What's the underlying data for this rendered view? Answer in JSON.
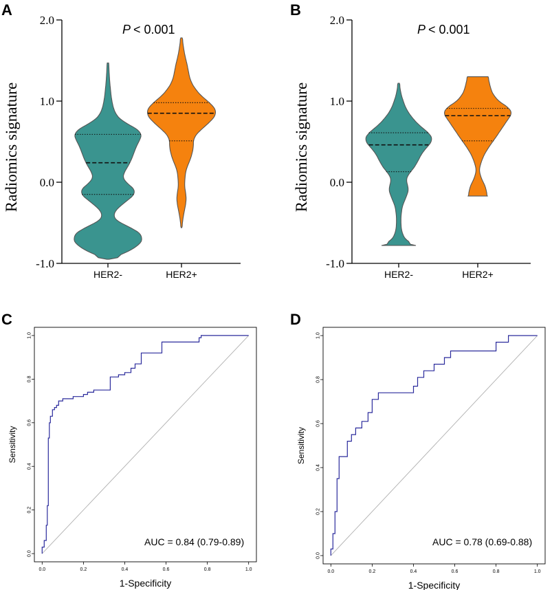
{
  "panels": {
    "A": {
      "letter": "A",
      "pvalue_symbol": "P",
      "pvalue_text": "< 0.001"
    },
    "B": {
      "letter": "B",
      "pvalue_symbol": "P",
      "pvalue_text": "< 0.001"
    },
    "C": {
      "letter": "C",
      "auc_text": "AUC = 0.84 (0.79-0.89)"
    },
    "D": {
      "letter": "D",
      "auc_text": "AUC = 0.78 (0.69-0.88)"
    }
  },
  "colors": {
    "her2_neg": "#3a948f",
    "her2_pos": "#f5820e",
    "roc_line": "#2a2a9c",
    "diag_line": "#b0b0b0"
  },
  "chart_data": [
    {
      "id": "A",
      "type": "violin",
      "title": "",
      "ylabel": "Radiomics signature",
      "xlabel": "",
      "categories": [
        "HER2-",
        "HER2+"
      ],
      "ylim": [
        -1.0,
        2.0
      ],
      "yticks": [
        -1.0,
        0.0,
        1.0,
        2.0
      ],
      "ytick_labels": [
        "-1.0",
        "0.0",
        "1.0",
        "2.0"
      ],
      "series": [
        {
          "name": "HER2-",
          "min": -0.95,
          "max": 1.47,
          "quartiles": [
            -0.15,
            0.24,
            0.59
          ],
          "profile": [
            [
              -0.95,
              0.03
            ],
            [
              -0.88,
              0.45
            ],
            [
              -0.78,
              0.88
            ],
            [
              -0.68,
              1.0
            ],
            [
              -0.58,
              0.78
            ],
            [
              -0.5,
              0.3
            ],
            [
              -0.44,
              0.15
            ],
            [
              -0.38,
              0.15
            ],
            [
              -0.3,
              0.32
            ],
            [
              -0.2,
              0.62
            ],
            [
              -0.12,
              0.82
            ],
            [
              -0.05,
              0.66
            ],
            [
              0.02,
              0.43
            ],
            [
              0.08,
              0.4
            ],
            [
              0.15,
              0.5
            ],
            [
              0.25,
              0.63
            ],
            [
              0.35,
              0.72
            ],
            [
              0.45,
              0.8
            ],
            [
              0.55,
              0.93
            ],
            [
              0.62,
              0.96
            ],
            [
              0.68,
              0.72
            ],
            [
              0.75,
              0.4
            ],
            [
              0.82,
              0.24
            ],
            [
              0.9,
              0.16
            ],
            [
              1.0,
              0.11
            ],
            [
              1.1,
              0.08
            ],
            [
              1.2,
              0.06
            ],
            [
              1.3,
              0.04
            ],
            [
              1.4,
              0.03
            ],
            [
              1.47,
              0.02
            ]
          ]
        },
        {
          "name": "HER2+",
          "min": -0.56,
          "max": 1.78,
          "quartiles": [
            0.51,
            0.85,
            0.98
          ],
          "profile": [
            [
              -0.56,
              0.01
            ],
            [
              -0.45,
              0.04
            ],
            [
              -0.35,
              0.08
            ],
            [
              -0.25,
              0.13
            ],
            [
              -0.15,
              0.13
            ],
            [
              -0.05,
              0.08
            ],
            [
              0.05,
              0.1
            ],
            [
              0.15,
              0.12
            ],
            [
              0.25,
              0.22
            ],
            [
              0.35,
              0.3
            ],
            [
              0.45,
              0.34
            ],
            [
              0.55,
              0.33
            ],
            [
              0.65,
              0.55
            ],
            [
              0.75,
              0.82
            ],
            [
              0.85,
              1.0
            ],
            [
              0.95,
              0.88
            ],
            [
              1.05,
              0.58
            ],
            [
              1.15,
              0.38
            ],
            [
              1.25,
              0.25
            ],
            [
              1.35,
              0.2
            ],
            [
              1.45,
              0.16
            ],
            [
              1.55,
              0.1
            ],
            [
              1.65,
              0.06
            ],
            [
              1.78,
              0.02
            ]
          ]
        }
      ]
    },
    {
      "id": "B",
      "type": "violin",
      "title": "",
      "ylabel": "Radiomics signature",
      "xlabel": "",
      "categories": [
        "HER2-",
        "HER2+"
      ],
      "ylim": [
        -1.0,
        2.0
      ],
      "yticks": [
        -1.0,
        0.0,
        1.0,
        2.0
      ],
      "ytick_labels": [
        "-1.0",
        "0.0",
        "1.0",
        "2.0"
      ],
      "series": [
        {
          "name": "HER2-",
          "min": -0.78,
          "max": 1.22,
          "quartiles": [
            0.13,
            0.46,
            0.61
          ],
          "profile": [
            [
              -0.78,
              0.5
            ],
            [
              -0.72,
              0.2
            ],
            [
              -0.6,
              0.08
            ],
            [
              -0.45,
              0.06
            ],
            [
              -0.3,
              0.1
            ],
            [
              -0.18,
              0.22
            ],
            [
              -0.08,
              0.3
            ],
            [
              0.0,
              0.22
            ],
            [
              0.08,
              0.24
            ],
            [
              0.15,
              0.4
            ],
            [
              0.25,
              0.55
            ],
            [
              0.35,
              0.66
            ],
            [
              0.45,
              0.86
            ],
            [
              0.52,
              1.0
            ],
            [
              0.6,
              0.9
            ],
            [
              0.7,
              0.6
            ],
            [
              0.8,
              0.38
            ],
            [
              0.9,
              0.22
            ],
            [
              1.0,
              0.13
            ],
            [
              1.1,
              0.06
            ],
            [
              1.22,
              0.02
            ]
          ]
        },
        {
          "name": "HER2+",
          "min": -0.17,
          "max": 1.3,
          "quartiles": [
            0.51,
            0.82,
            0.91
          ],
          "profile": [
            [
              -0.17,
              0.28
            ],
            [
              -0.05,
              0.22
            ],
            [
              0.05,
              0.1
            ],
            [
              0.15,
              0.04
            ],
            [
              0.25,
              0.1
            ],
            [
              0.35,
              0.2
            ],
            [
              0.45,
              0.35
            ],
            [
              0.55,
              0.52
            ],
            [
              0.65,
              0.68
            ],
            [
              0.75,
              0.84
            ],
            [
              0.85,
              1.0
            ],
            [
              0.92,
              0.9
            ],
            [
              1.0,
              0.6
            ],
            [
              1.1,
              0.42
            ],
            [
              1.2,
              0.35
            ],
            [
              1.3,
              0.3
            ]
          ]
        }
      ]
    },
    {
      "id": "C",
      "type": "line",
      "title": "",
      "xlabel": "1-Specificity",
      "ylabel": "Sensitivity",
      "xlim": [
        0.0,
        1.0
      ],
      "ylim": [
        0.0,
        1.0
      ],
      "ticks": [
        0.0,
        0.2,
        0.4,
        0.6,
        0.8,
        1.0
      ],
      "tick_labels": [
        "0.0",
        "0.2",
        "0.4",
        "0.6",
        "0.8",
        "1.0"
      ],
      "auc": "0.84",
      "x": [
        0.0,
        0.0,
        0.01,
        0.01,
        0.02,
        0.02,
        0.025,
        0.025,
        0.03,
        0.03,
        0.035,
        0.035,
        0.04,
        0.04,
        0.05,
        0.05,
        0.06,
        0.06,
        0.07,
        0.07,
        0.08,
        0.08,
        0.1,
        0.1,
        0.12,
        0.12,
        0.15,
        0.15,
        0.2,
        0.2,
        0.22,
        0.22,
        0.25,
        0.25,
        0.33,
        0.33,
        0.37,
        0.37,
        0.4,
        0.4,
        0.43,
        0.43,
        0.45,
        0.45,
        0.48,
        0.48,
        0.58,
        0.58,
        0.76,
        0.76,
        0.77,
        0.77,
        0.8,
        0.8,
        1.0
      ],
      "y": [
        0.0,
        0.03,
        0.03,
        0.06,
        0.06,
        0.13,
        0.13,
        0.22,
        0.22,
        0.53,
        0.53,
        0.6,
        0.6,
        0.63,
        0.63,
        0.66,
        0.66,
        0.67,
        0.67,
        0.68,
        0.68,
        0.7,
        0.7,
        0.71,
        0.71,
        0.71,
        0.71,
        0.72,
        0.72,
        0.73,
        0.73,
        0.74,
        0.74,
        0.75,
        0.75,
        0.81,
        0.81,
        0.82,
        0.82,
        0.83,
        0.83,
        0.85,
        0.85,
        0.87,
        0.87,
        0.92,
        0.92,
        0.97,
        0.97,
        0.99,
        0.99,
        1.0,
        1.0,
        1.0,
        1.0
      ],
      "diagonal": [
        [
          0,
          0
        ],
        [
          1,
          1
        ]
      ]
    },
    {
      "id": "D",
      "type": "line",
      "title": "",
      "xlabel": "1-Specificity",
      "ylabel": "Sensitivity",
      "xlim": [
        0.0,
        1.0
      ],
      "ylim": [
        0.0,
        1.0
      ],
      "ticks": [
        0.0,
        0.2,
        0.4,
        0.6,
        0.8,
        1.0
      ],
      "tick_labels": [
        "0.0",
        "0.2",
        "0.4",
        "0.6",
        "0.8",
        "1.0"
      ],
      "auc": "0.78",
      "x": [
        0.0,
        0.0,
        0.01,
        0.01,
        0.02,
        0.02,
        0.03,
        0.03,
        0.04,
        0.04,
        0.08,
        0.08,
        0.1,
        0.1,
        0.12,
        0.12,
        0.15,
        0.15,
        0.18,
        0.18,
        0.2,
        0.2,
        0.23,
        0.23,
        0.27,
        0.27,
        0.4,
        0.4,
        0.42,
        0.42,
        0.45,
        0.45,
        0.5,
        0.5,
        0.55,
        0.55,
        0.58,
        0.58,
        0.62,
        0.62,
        0.8,
        0.8,
        0.86,
        0.86,
        1.0
      ],
      "y": [
        0.0,
        0.03,
        0.03,
        0.1,
        0.1,
        0.2,
        0.2,
        0.35,
        0.35,
        0.45,
        0.45,
        0.52,
        0.52,
        0.55,
        0.55,
        0.58,
        0.58,
        0.61,
        0.61,
        0.65,
        0.65,
        0.71,
        0.71,
        0.74,
        0.74,
        0.74,
        0.74,
        0.77,
        0.77,
        0.81,
        0.81,
        0.84,
        0.84,
        0.87,
        0.87,
        0.9,
        0.9,
        0.93,
        0.93,
        0.93,
        0.93,
        0.97,
        0.97,
        1.0,
        1.0
      ],
      "diagonal": [
        [
          0,
          0
        ],
        [
          1,
          1
        ]
      ]
    }
  ]
}
